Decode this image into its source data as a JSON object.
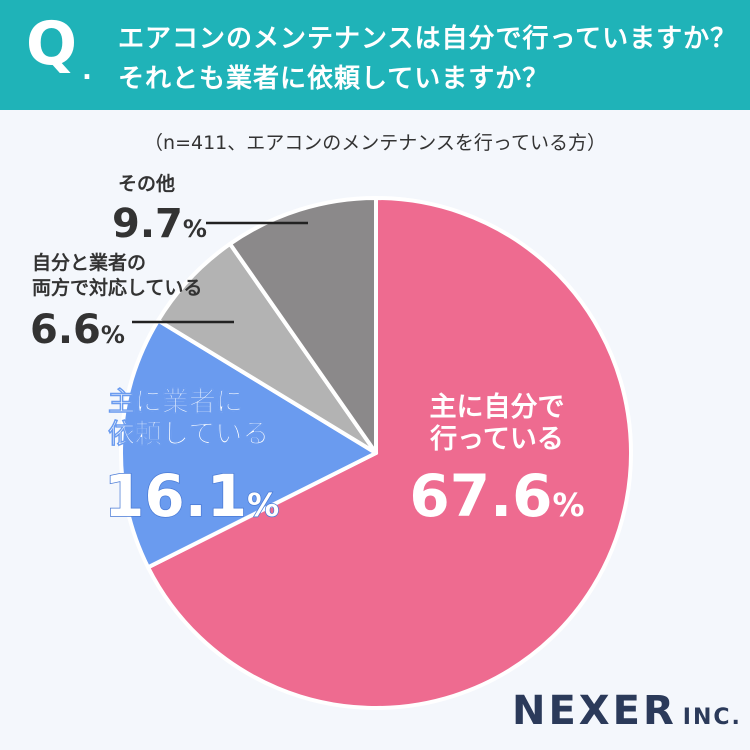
{
  "header": {
    "q": "Q",
    "dot": ".",
    "line1": "エアコンのメンテナンスは自分で行っていますか？",
    "line2": "それとも業者に依頼していますか？"
  },
  "subtitle": "（n=411、エアコンのメンテナンスを行っている方）",
  "chart_data": {
    "type": "pie",
    "slices": [
      {
        "label_lines": [
          "主に自分で",
          "行っている"
        ],
        "value": 67.6,
        "value_text": "67.6",
        "color": "#ee6b90"
      },
      {
        "label_lines": [
          "主に業者に",
          "依頼している"
        ],
        "value": 16.1,
        "value_text": "16.1",
        "color": "#6a9bef"
      },
      {
        "label_lines": [
          "自分と業者の",
          "両方で対応している"
        ],
        "value": 6.6,
        "value_text": "6.6",
        "color": "#b3b3b3"
      },
      {
        "label_lines": [
          "その他"
        ],
        "value": 9.7,
        "value_text": "9.7",
        "color": "#8b898a"
      }
    ],
    "unit": "%"
  },
  "logo": {
    "name": "NEXER",
    "suffix": "INC."
  }
}
